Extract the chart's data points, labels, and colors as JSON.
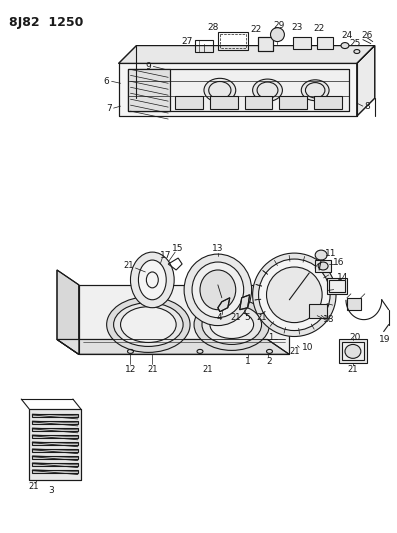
{
  "title": "8J82  1250",
  "bg": "#ffffff",
  "lc": "#1a1a1a",
  "fig_w": 3.97,
  "fig_h": 5.33,
  "dpi": 100
}
